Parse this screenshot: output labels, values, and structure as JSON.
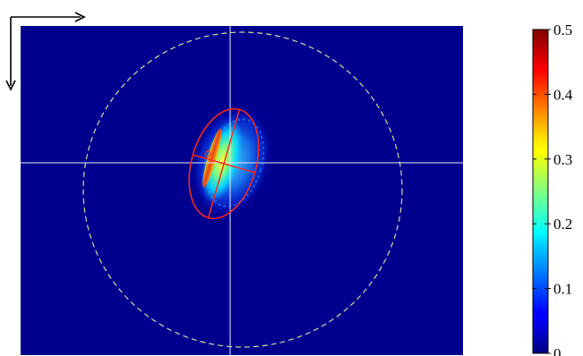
{
  "chart_data": {
    "type": "heatmap",
    "title": "",
    "xlabel": "",
    "ylabel": "",
    "colormap": "jet",
    "colorbar": {
      "range": [
        0,
        0.5
      ],
      "ticks": [
        {
          "value": 0,
          "label": "0"
        },
        {
          "value": 0.1,
          "label": "0.1"
        },
        {
          "value": 0.2,
          "label": "0.2"
        },
        {
          "value": 0.3,
          "label": "0.3"
        },
        {
          "value": 0.4,
          "label": "0.4"
        },
        {
          "value": 0.5,
          "label": "0.5"
        }
      ]
    },
    "background_value": 0.02,
    "peak_value": 0.5,
    "grid": false,
    "overlays": {
      "crosshair_color": "#e8eef5",
      "ellipse_color": "#ff2a1a",
      "circle_color": "#d8d8a0"
    }
  }
}
